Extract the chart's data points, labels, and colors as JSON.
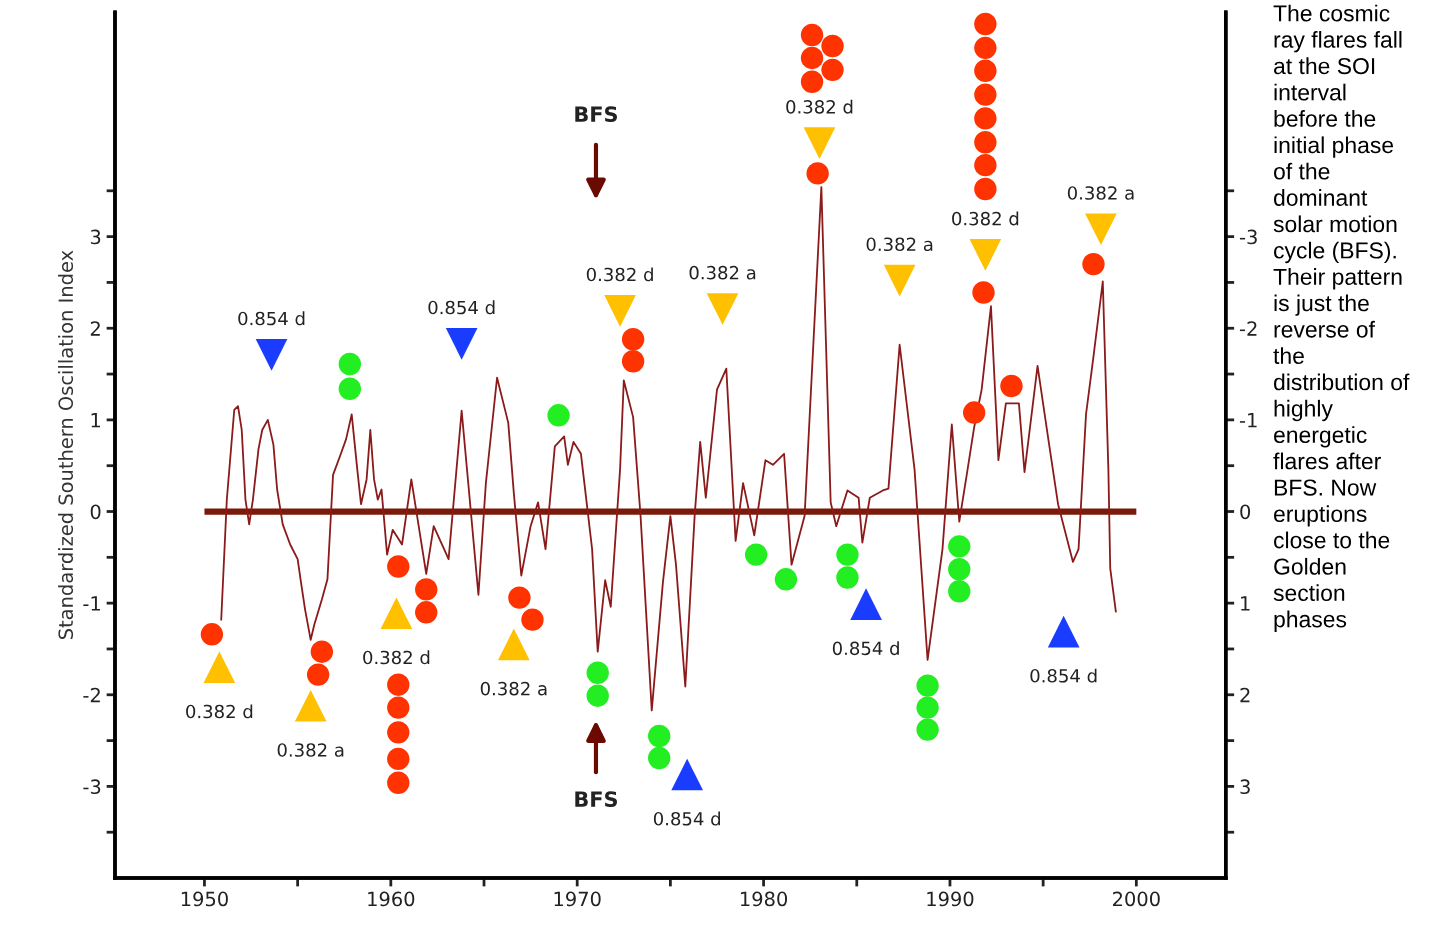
{
  "chart_data": {
    "type": "line",
    "ylabel": "Standardized Southern Oscillation Index",
    "xlim": [
      1945.2,
      2004.8
    ],
    "ylim": [
      -4,
      5.45
    ],
    "y2lim": [
      4,
      -5.45
    ],
    "xticks": [
      1950,
      {
        "value": 1955,
        "label": null
      },
      1960,
      {
        "value": 1965,
        "label": null
      },
      1970,
      {
        "value": 1975,
        "label": null
      },
      1980,
      {
        "value": 1985,
        "label": null
      },
      1990,
      {
        "value": 1995,
        "label": null
      },
      2000
    ],
    "yticks": [
      {
        "value": -3.5,
        "label": null
      },
      {
        "value": -3,
        "label": "-3"
      },
      {
        "value": -2.5,
        "label": null
      },
      {
        "value": -2,
        "label": "-2"
      },
      {
        "value": -1.5,
        "label": null
      },
      {
        "value": -1,
        "label": "-1"
      },
      {
        "value": -0.5,
        "label": null
      },
      0,
      {
        "value": 0.5,
        "label": null
      },
      1,
      {
        "value": 1.5,
        "label": null
      },
      2,
      {
        "value": 2.5,
        "label": null
      },
      3,
      {
        "value": 3.5,
        "label": null
      }
    ],
    "y2ticks": [
      {
        "value": -3.5,
        "label": null
      },
      {
        "value": -3,
        "label": "-3"
      },
      {
        "value": -2.5,
        "label": null
      },
      {
        "value": -2,
        "label": "-2"
      },
      {
        "value": -1.5,
        "label": null
      },
      {
        "value": -1,
        "label": "-1"
      },
      {
        "value": -0.5,
        "label": null
      },
      0,
      {
        "value": 0.5,
        "label": null
      },
      1,
      {
        "value": 1.5,
        "label": null
      },
      2,
      {
        "value": 2.5,
        "label": null
      },
      3,
      {
        "value": 3.5,
        "label": null
      }
    ],
    "ref_lines": [
      {
        "axis": "y",
        "value": 0,
        "color": "#7a1a0a",
        "line_style": "solid"
      }
    ],
    "series": [
      {
        "color": "#8b1a1a",
        "marker": "none",
        "line_style": "solid",
        "x": [
          1950.9,
          1951.2,
          1951.6,
          1951.8,
          1952.0,
          1952.2,
          1952.4,
          1952.6,
          1952.9,
          1953.1,
          1953.4,
          1953.7,
          1953.9,
          1954.2,
          1954.6,
          1955.0,
          1955.2,
          1955.4,
          1955.7,
          1955.9,
          1956.3,
          1956.6,
          1956.9,
          1957.3,
          1957.6,
          1957.9,
          1958.2,
          1958.4,
          1958.7,
          1958.9,
          1959.1,
          1959.3,
          1959.5,
          1959.8,
          1960.1,
          1960.6,
          1961.1,
          1961.9,
          1962.3,
          1963.1,
          1963.8,
          1964.7,
          1965.1,
          1965.7,
          1966.3,
          1966.6,
          1967.0,
          1967.5,
          1967.9,
          1968.3,
          1968.8,
          1969.3,
          1969.5,
          1969.8,
          1970.2,
          1970.8,
          1971.1,
          1971.5,
          1971.8,
          1972.3,
          1972.5,
          1973.0,
          1973.4,
          1974.0,
          1974.6,
          1975.0,
          1975.3,
          1975.8,
          1976.3,
          1976.6,
          1976.9,
          1977.5,
          1978.0,
          1978.5,
          1978.9,
          1979.5,
          1980.1,
          1980.5,
          1981.1,
          1981.5,
          1982.2,
          1983.1,
          1983.6,
          1983.9,
          1984.5,
          1985.1,
          1985.3,
          1985.7,
          1986.4,
          1986.7,
          1987.3,
          1988.1,
          1988.8,
          1989.6,
          1990.1,
          1990.5,
          1990.9,
          1991.3,
          1991.7,
          1992.2,
          1992.6,
          1993.0,
          1993.7,
          1994.0,
          1994.7,
          1995.3,
          1995.8,
          1996.6,
          1996.9,
          1997.3,
          1997.7,
          1998.2,
          1998.5,
          1998.6,
          1998.9
        ],
        "values": [
          -1.18,
          0.13,
          1.11,
          1.15,
          0.89,
          0.13,
          -0.14,
          0.13,
          0.68,
          0.89,
          1.0,
          0.73,
          0.24,
          -0.14,
          -0.36,
          -0.52,
          -0.8,
          -1.07,
          -1.4,
          -1.23,
          -0.96,
          -0.74,
          0.4,
          0.62,
          0.79,
          1.06,
          0.46,
          0.08,
          0.35,
          0.89,
          0.35,
          0.13,
          0.24,
          -0.47,
          -0.2,
          -0.36,
          0.35,
          -0.68,
          -0.16,
          -0.52,
          1.1,
          -0.91,
          0.31,
          1.46,
          0.97,
          0.2,
          -0.7,
          -0.16,
          0.1,
          -0.41,
          0.71,
          0.82,
          0.51,
          0.76,
          0.63,
          -0.41,
          -1.53,
          -0.75,
          -1.04,
          0.46,
          1.43,
          1.03,
          -0.05,
          -2.17,
          -0.77,
          -0.05,
          -0.58,
          -1.91,
          -0.05,
          0.76,
          0.15,
          1.33,
          1.56,
          -0.32,
          0.31,
          -0.26,
          0.56,
          0.51,
          0.63,
          -0.58,
          -0.05,
          3.54,
          0.1,
          -0.16,
          0.23,
          0.15,
          -0.34,
          0.15,
          0.23,
          0.25,
          1.82,
          0.46,
          -1.62,
          -0.41,
          0.95,
          -0.11,
          0.4,
          0.92,
          1.33,
          2.24,
          0.56,
          1.18,
          1.18,
          0.43,
          1.59,
          0.76,
          0.08,
          -0.55,
          -0.41,
          1.06,
          1.69,
          2.51,
          0.46,
          -0.62,
          -1.09
        ]
      },
      {
        "type": "scatter",
        "color": "#ff3300",
        "marker": "circle",
        "x": [
          1950.4,
          1956.3,
          1956.1,
          1960.4,
          1960.4,
          1960.4,
          1960.4,
          1960.4,
          1960.4,
          1961.9,
          1961.9,
          1966.9,
          1967.6,
          1973.0,
          1973.0,
          1982.9,
          1982.6,
          1982.6,
          1982.6,
          1983.7,
          1983.7,
          1991.9,
          1991.9,
          1991.9,
          1991.9,
          1991.9,
          1991.9,
          1991.9,
          1991.9,
          1991.8,
          1991.3,
          1993.3,
          1997.7
        ],
        "values": [
          -1.34,
          -1.53,
          -1.78,
          -0.6,
          -1.89,
          -2.14,
          -2.41,
          -2.7,
          -2.96,
          -0.85,
          -1.1,
          -0.94,
          -1.18,
          1.88,
          1.64,
          3.69,
          5.2,
          4.95,
          4.69,
          5.08,
          4.82,
          5.32,
          5.06,
          4.81,
          4.55,
          4.29,
          4.03,
          3.78,
          3.52,
          2.39,
          1.08,
          1.37,
          2.7
        ]
      },
      {
        "type": "scatter",
        "color": "#22ee22",
        "marker": "circle",
        "x": [
          1957.8,
          1957.8,
          1969.0,
          1971.1,
          1971.1,
          1974.4,
          1974.4,
          1979.6,
          1981.2,
          1984.5,
          1984.5,
          1988.8,
          1988.8,
          1988.8,
          1990.5,
          1990.5,
          1990.5
        ],
        "values": [
          1.61,
          1.34,
          1.05,
          -1.76,
          -2.01,
          -2.45,
          -2.69,
          -0.47,
          -0.74,
          -0.47,
          -0.72,
          -1.9,
          -2.14,
          -2.38,
          -0.38,
          -0.63,
          -0.87
        ]
      },
      {
        "type": "scatter",
        "color": "#ffc000",
        "marker": "triangle",
        "x": [
          1950.8,
          1955.7,
          1960.3,
          1966.6
        ],
        "values": [
          -1.7,
          -2.12,
          -1.11,
          -1.45
        ]
      },
      {
        "type": "scatter",
        "color": "#ffc000",
        "marker": "triangle_down",
        "x": [
          1972.3,
          1977.8,
          1983.0,
          1987.3,
          1991.9,
          1998.1
        ],
        "values": [
          2.19,
          2.21,
          4.02,
          2.52,
          2.8,
          3.08
        ]
      },
      {
        "type": "scatter",
        "color": "#1a3cff",
        "marker": "triangle_down",
        "x": [
          1953.6,
          1963.8
        ],
        "values": [
          1.71,
          1.83
        ]
      },
      {
        "type": "scatter",
        "color": "#1a3cff",
        "marker": "triangle",
        "x": [
          1975.9,
          1985.5,
          1996.1
        ],
        "values": [
          -2.87,
          -1.01,
          -1.31
        ]
      }
    ],
    "annotations": [
      {
        "text": "0.382 d",
        "x": 1950.8,
        "y": -1.7
      },
      {
        "text": "0.382 a",
        "x": 1955.7,
        "y": -2.12
      },
      {
        "text": "0.382 d",
        "x": 1960.3,
        "y": -1.11
      },
      {
        "text": "0.382 a",
        "x": 1966.6,
        "y": -1.45
      },
      {
        "text": "0.382 d",
        "x": 1972.3,
        "y": 2.19
      },
      {
        "text": "0.382 a",
        "x": 1977.8,
        "y": 2.21
      },
      {
        "text": "0.382 d",
        "x": 1983.0,
        "y": 4.02
      },
      {
        "text": "0.382 a",
        "x": 1987.3,
        "y": 2.52
      },
      {
        "text": "0.382 d",
        "x": 1991.9,
        "y": 2.8
      },
      {
        "text": "0.382 a",
        "x": 1998.1,
        "y": 3.08
      },
      {
        "text": "0.854 d",
        "x": 1953.6,
        "y": 1.71
      },
      {
        "text": "0.854 d",
        "x": 1963.8,
        "y": 1.83
      },
      {
        "text": "0.854 d",
        "x": 1975.9,
        "y": -2.87
      },
      {
        "text": "0.854 d",
        "x": 1985.5,
        "y": -1.01
      },
      {
        "text": "0.854 d",
        "x": 1996.1,
        "y": -1.31
      },
      "BFS",
      "BFS",
      "The cosmic ray flares fall at the SOI interval before the initial phase of the dominant solar motion cycle (BFS). Their pattern is just the reverse of the distribution of highly energetic flares after BFS. Now eruptions close to the Golden section phases"
    ]
  }
}
